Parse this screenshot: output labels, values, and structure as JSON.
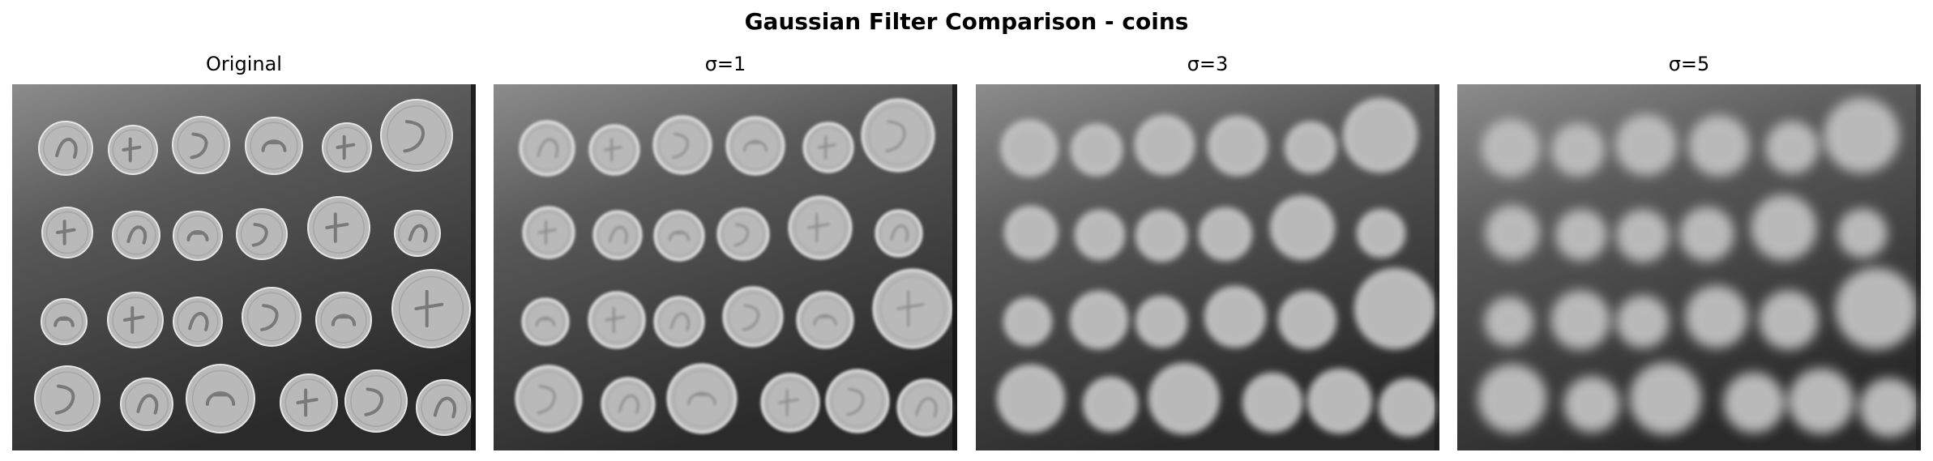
{
  "figure": {
    "title": "Gaussian Filter Comparison - coins"
  },
  "panels": [
    {
      "title": "Original",
      "sigma": 0,
      "image_name": "coins-original-image"
    },
    {
      "title": "σ=1",
      "sigma": 1,
      "image_name": "coins-sigma-1-image"
    },
    {
      "title": "σ=3",
      "sigma": 3,
      "image_name": "coins-sigma-3-image"
    },
    {
      "title": "σ=5",
      "sigma": 5,
      "image_name": "coins-sigma-5-image"
    }
  ],
  "colors": {
    "background": "#ffffff",
    "image_dark": "#2a2a2a",
    "image_light": "#8c8c8c",
    "coin_fill": "#b9b9b9",
    "coin_edge": "#e6e6e6",
    "coin_detail": "#6d6d6d"
  }
}
